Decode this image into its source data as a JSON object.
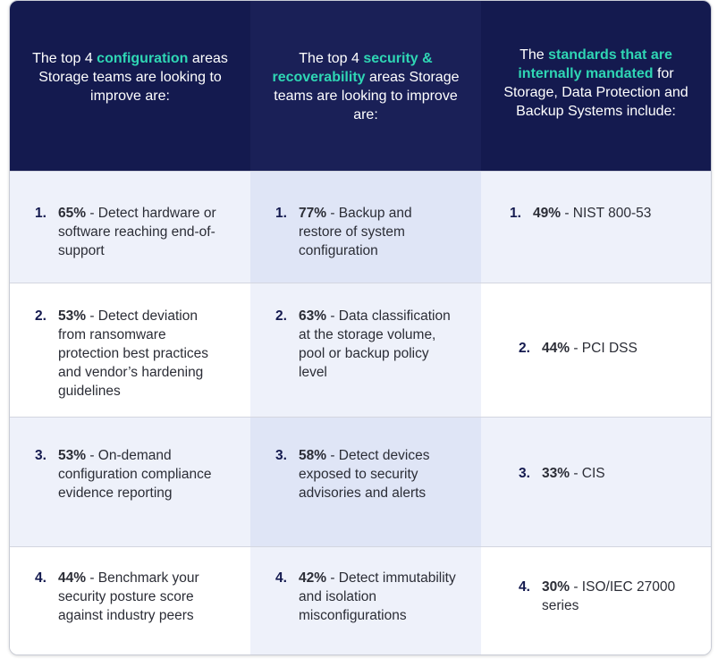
{
  "header": {
    "col1": {
      "pre": "The top 4 ",
      "highlight": "configuration",
      "post": " areas Storage teams are looking to improve are:"
    },
    "col2": {
      "pre": "The top 4 ",
      "highlight": "security & recoverability",
      "post": " areas Storage teams are looking to improve are:"
    },
    "col3": {
      "pre": "The ",
      "highlight": "standards that are internally mandated",
      "post": " for Storage, Data Protection and Backup Systems include:"
    }
  },
  "rows": [
    {
      "col1": {
        "num": "1.",
        "pct": "65%",
        "text": " - Detect hardware or software reaching end-of-support"
      },
      "col2": {
        "num": "1.",
        "pct": "77%",
        "text": " - Backup and restore of system configuration"
      },
      "col3": {
        "num": "1.",
        "pct": "49%",
        "text": " - NIST 800-53"
      }
    },
    {
      "col1": {
        "num": "2.",
        "pct": "53%",
        "text": " - Detect deviation from ransomware protection best practices and vendor’s hardening guidelines"
      },
      "col2": {
        "num": "2.",
        "pct": "63%",
        "text": " - Data classification at the storage volume, pool or backup policy level"
      },
      "col3": {
        "num": "2.",
        "pct": "44%",
        "text": " - PCI DSS"
      }
    },
    {
      "col1": {
        "num": "3.",
        "pct": "53%",
        "text": " - On-demand configuration compliance evidence reporting"
      },
      "col2": {
        "num": "3.",
        "pct": "58%",
        "text": " - Detect devices exposed to security advisories and alerts"
      },
      "col3": {
        "num": "3.",
        "pct": "33%",
        "text": " - CIS"
      }
    },
    {
      "col1": {
        "num": "4.",
        "pct": "44%",
        "text": " - Benchmark your security posture score against industry peers"
      },
      "col2": {
        "num": "4.",
        "pct": "42%",
        "text": " - Detect immutability and isolation misconfigurations"
      },
      "col3": {
        "num": "4.",
        "pct": "30%",
        "text": " - ISO/IEC 27000 series"
      }
    }
  ]
}
